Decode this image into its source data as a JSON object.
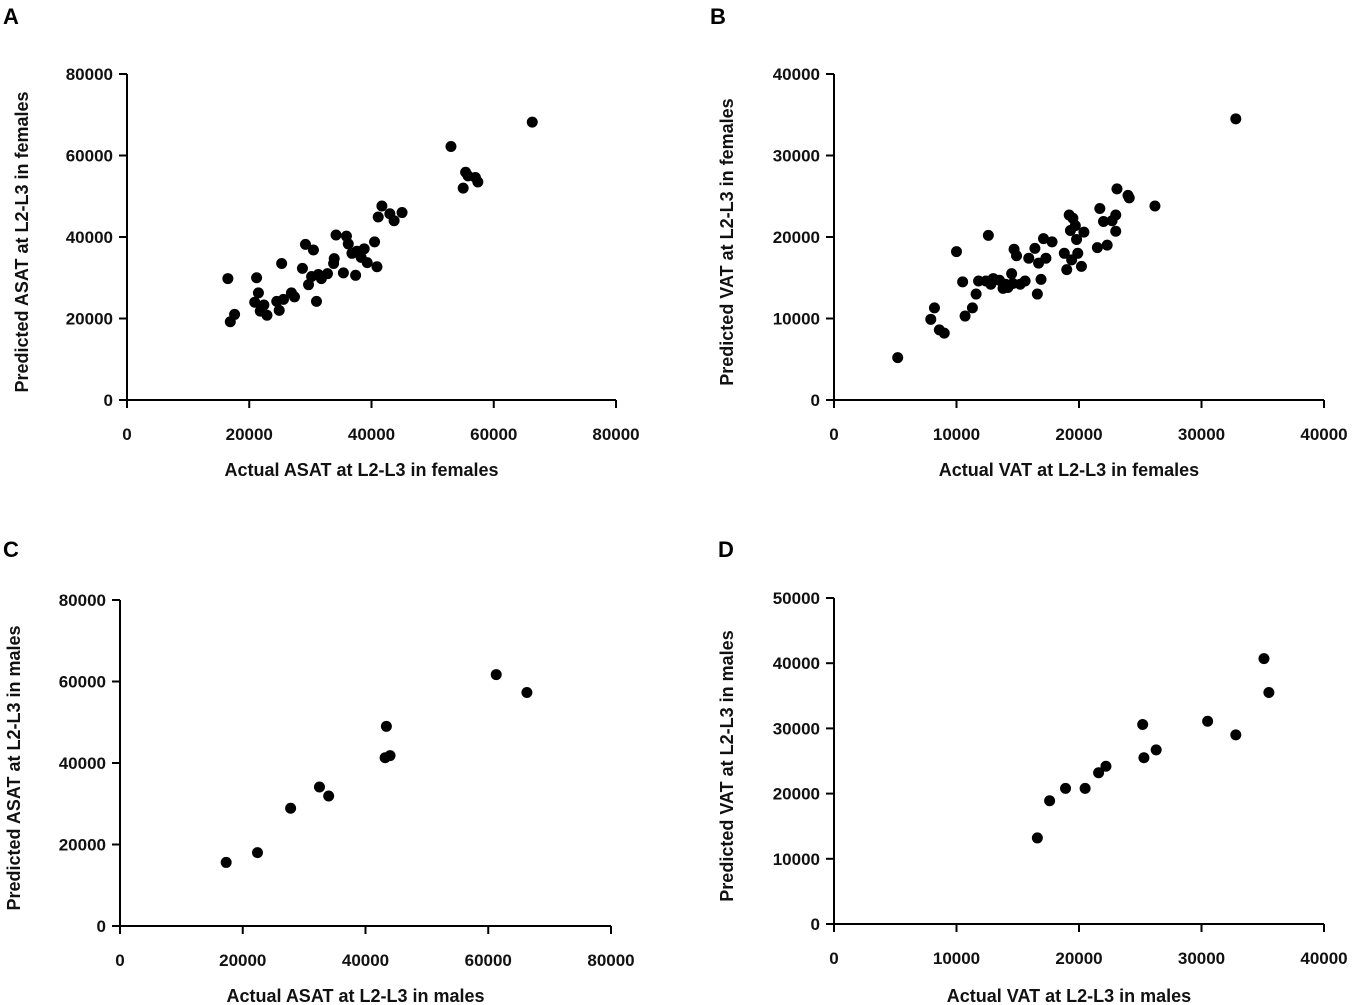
{
  "chart_data": [
    {
      "panel": "A",
      "type": "scatter",
      "xlabel": "Actual ASAT at L2-L3 in females",
      "ylabel": "Predicted ASAT at L2-L3 in females",
      "xlim": [
        0,
        80000
      ],
      "ylim": [
        0,
        80000
      ],
      "xticks": [
        0,
        20000,
        40000,
        60000,
        80000
      ],
      "yticks": [
        0,
        20000,
        40000,
        60000,
        80000
      ],
      "tick_labels_x": [
        "0",
        "20000",
        "40000",
        "60000",
        "80000"
      ],
      "tick_labels_y": [
        "0",
        "20000",
        "40000",
        "60000",
        "80000"
      ],
      "points": [
        [
          16500,
          29800
        ],
        [
          16900,
          19200
        ],
        [
          17600,
          21000
        ],
        [
          20900,
          24000
        ],
        [
          21200,
          30000
        ],
        [
          21500,
          26300
        ],
        [
          21800,
          21800
        ],
        [
          22400,
          23300
        ],
        [
          22900,
          20800
        ],
        [
          24500,
          24200
        ],
        [
          24900,
          22000
        ],
        [
          25300,
          33500
        ],
        [
          25600,
          24700
        ],
        [
          26900,
          26300
        ],
        [
          27400,
          25300
        ],
        [
          28700,
          32300
        ],
        [
          29200,
          38200
        ],
        [
          29700,
          28300
        ],
        [
          30200,
          30300
        ],
        [
          30500,
          36800
        ],
        [
          31000,
          24200
        ],
        [
          31300,
          30800
        ],
        [
          31800,
          29800
        ],
        [
          32800,
          31000
        ],
        [
          33800,
          33500
        ],
        [
          33900,
          34700
        ],
        [
          34200,
          40500
        ],
        [
          35400,
          31200
        ],
        [
          35900,
          40200
        ],
        [
          36200,
          38300
        ],
        [
          36800,
          36000
        ],
        [
          37400,
          30600
        ],
        [
          37600,
          36500
        ],
        [
          38300,
          35000
        ],
        [
          38800,
          37100
        ],
        [
          39300,
          33700
        ],
        [
          40500,
          38800
        ],
        [
          40900,
          32700
        ],
        [
          41100,
          44900
        ],
        [
          41700,
          47600
        ],
        [
          43000,
          45700
        ],
        [
          43700,
          44000
        ],
        [
          45000,
          46000
        ],
        [
          53000,
          62200
        ],
        [
          55000,
          52000
        ],
        [
          55400,
          55900
        ],
        [
          55800,
          55000
        ],
        [
          57000,
          54600
        ],
        [
          57400,
          53500
        ],
        [
          66300,
          68200
        ]
      ]
    },
    {
      "panel": "B",
      "type": "scatter",
      "xlabel": "Actual VAT at L2-L3 in females",
      "ylabel": "Predicted VAT at L2-L3 in females",
      "xlim": [
        0,
        40000
      ],
      "ylim": [
        0,
        40000
      ],
      "xticks": [
        0,
        10000,
        20000,
        30000,
        40000
      ],
      "yticks": [
        0,
        10000,
        20000,
        30000,
        40000
      ],
      "tick_labels_x": [
        "0",
        "10000",
        "20000",
        "30000",
        "40000"
      ],
      "tick_labels_y": [
        "0",
        "10000",
        "20000",
        "30000",
        "40000"
      ],
      "points": [
        [
          5200,
          5200
        ],
        [
          7900,
          9900
        ],
        [
          8200,
          11300
        ],
        [
          8600,
          8600
        ],
        [
          9000,
          8200
        ],
        [
          10000,
          18200
        ],
        [
          10500,
          14500
        ],
        [
          10700,
          10300
        ],
        [
          11300,
          11300
        ],
        [
          11600,
          13000
        ],
        [
          11800,
          14600
        ],
        [
          12400,
          14600
        ],
        [
          12600,
          20200
        ],
        [
          12800,
          14200
        ],
        [
          13000,
          14900
        ],
        [
          13500,
          14700
        ],
        [
          13800,
          13700
        ],
        [
          14000,
          14200
        ],
        [
          14200,
          13800
        ],
        [
          14500,
          15500
        ],
        [
          14600,
          14300
        ],
        [
          14700,
          18500
        ],
        [
          14900,
          17700
        ],
        [
          15200,
          14200
        ],
        [
          15600,
          14600
        ],
        [
          15900,
          17400
        ],
        [
          16400,
          18600
        ],
        [
          16600,
          13000
        ],
        [
          16700,
          16800
        ],
        [
          16900,
          14800
        ],
        [
          17100,
          19800
        ],
        [
          17300,
          17400
        ],
        [
          17800,
          19400
        ],
        [
          18800,
          18000
        ],
        [
          19000,
          16000
        ],
        [
          19200,
          22700
        ],
        [
          19300,
          20800
        ],
        [
          19400,
          17200
        ],
        [
          19500,
          22300
        ],
        [
          19700,
          21400
        ],
        [
          19800,
          19700
        ],
        [
          19900,
          18000
        ],
        [
          20200,
          16400
        ],
        [
          20400,
          20600
        ],
        [
          21500,
          18700
        ],
        [
          21700,
          23500
        ],
        [
          22000,
          21900
        ],
        [
          22300,
          19000
        ],
        [
          22700,
          22000
        ],
        [
          23000,
          20700
        ],
        [
          23000,
          22700
        ],
        [
          23100,
          25900
        ],
        [
          24000,
          25100
        ],
        [
          24100,
          24800
        ],
        [
          26200,
          23800
        ],
        [
          32800,
          34500
        ]
      ]
    },
    {
      "panel": "C",
      "type": "scatter",
      "xlabel": "Actual ASAT at L2-L3 in males",
      "ylabel": "Predicted ASAT at L2-L3 in males",
      "xlim": [
        0,
        80000
      ],
      "ylim": [
        0,
        80000
      ],
      "xticks": [
        0,
        20000,
        40000,
        60000,
        80000
      ],
      "yticks": [
        0,
        20000,
        40000,
        60000,
        80000
      ],
      "tick_labels_x": [
        "0",
        "20000",
        "40000",
        "60000",
        "80000"
      ],
      "tick_labels_y": [
        "0",
        "20000",
        "40000",
        "60000",
        "80000"
      ],
      "points": [
        [
          17300,
          15600
        ],
        [
          22400,
          18000
        ],
        [
          27800,
          28900
        ],
        [
          32500,
          34100
        ],
        [
          34000,
          31900
        ],
        [
          43200,
          41300
        ],
        [
          43400,
          49000
        ],
        [
          44000,
          41800
        ],
        [
          61300,
          61700
        ],
        [
          66300,
          57300
        ]
      ]
    },
    {
      "panel": "D",
      "type": "scatter",
      "xlabel": "Actual VAT at L2-L3 in males",
      "ylabel": "Predicted VAT at L2-L3 in males",
      "xlim": [
        0,
        40000
      ],
      "ylim": [
        0,
        50000
      ],
      "xticks": [
        0,
        10000,
        20000,
        30000,
        40000
      ],
      "yticks": [
        0,
        10000,
        20000,
        30000,
        40000,
        50000
      ],
      "tick_labels_x": [
        "0",
        "10000",
        "20000",
        "30000",
        "40000"
      ],
      "tick_labels_y": [
        "0",
        "10000",
        "20000",
        "30000",
        "40000",
        "50000"
      ],
      "points": [
        [
          16600,
          13200
        ],
        [
          17600,
          18900
        ],
        [
          18900,
          20800
        ],
        [
          20500,
          20800
        ],
        [
          21600,
          23200
        ],
        [
          22200,
          24200
        ],
        [
          25200,
          30600
        ],
        [
          25300,
          25500
        ],
        [
          26300,
          26700
        ],
        [
          30500,
          31100
        ],
        [
          32800,
          29000
        ],
        [
          35100,
          40700
        ],
        [
          35500,
          35500
        ]
      ]
    }
  ]
}
